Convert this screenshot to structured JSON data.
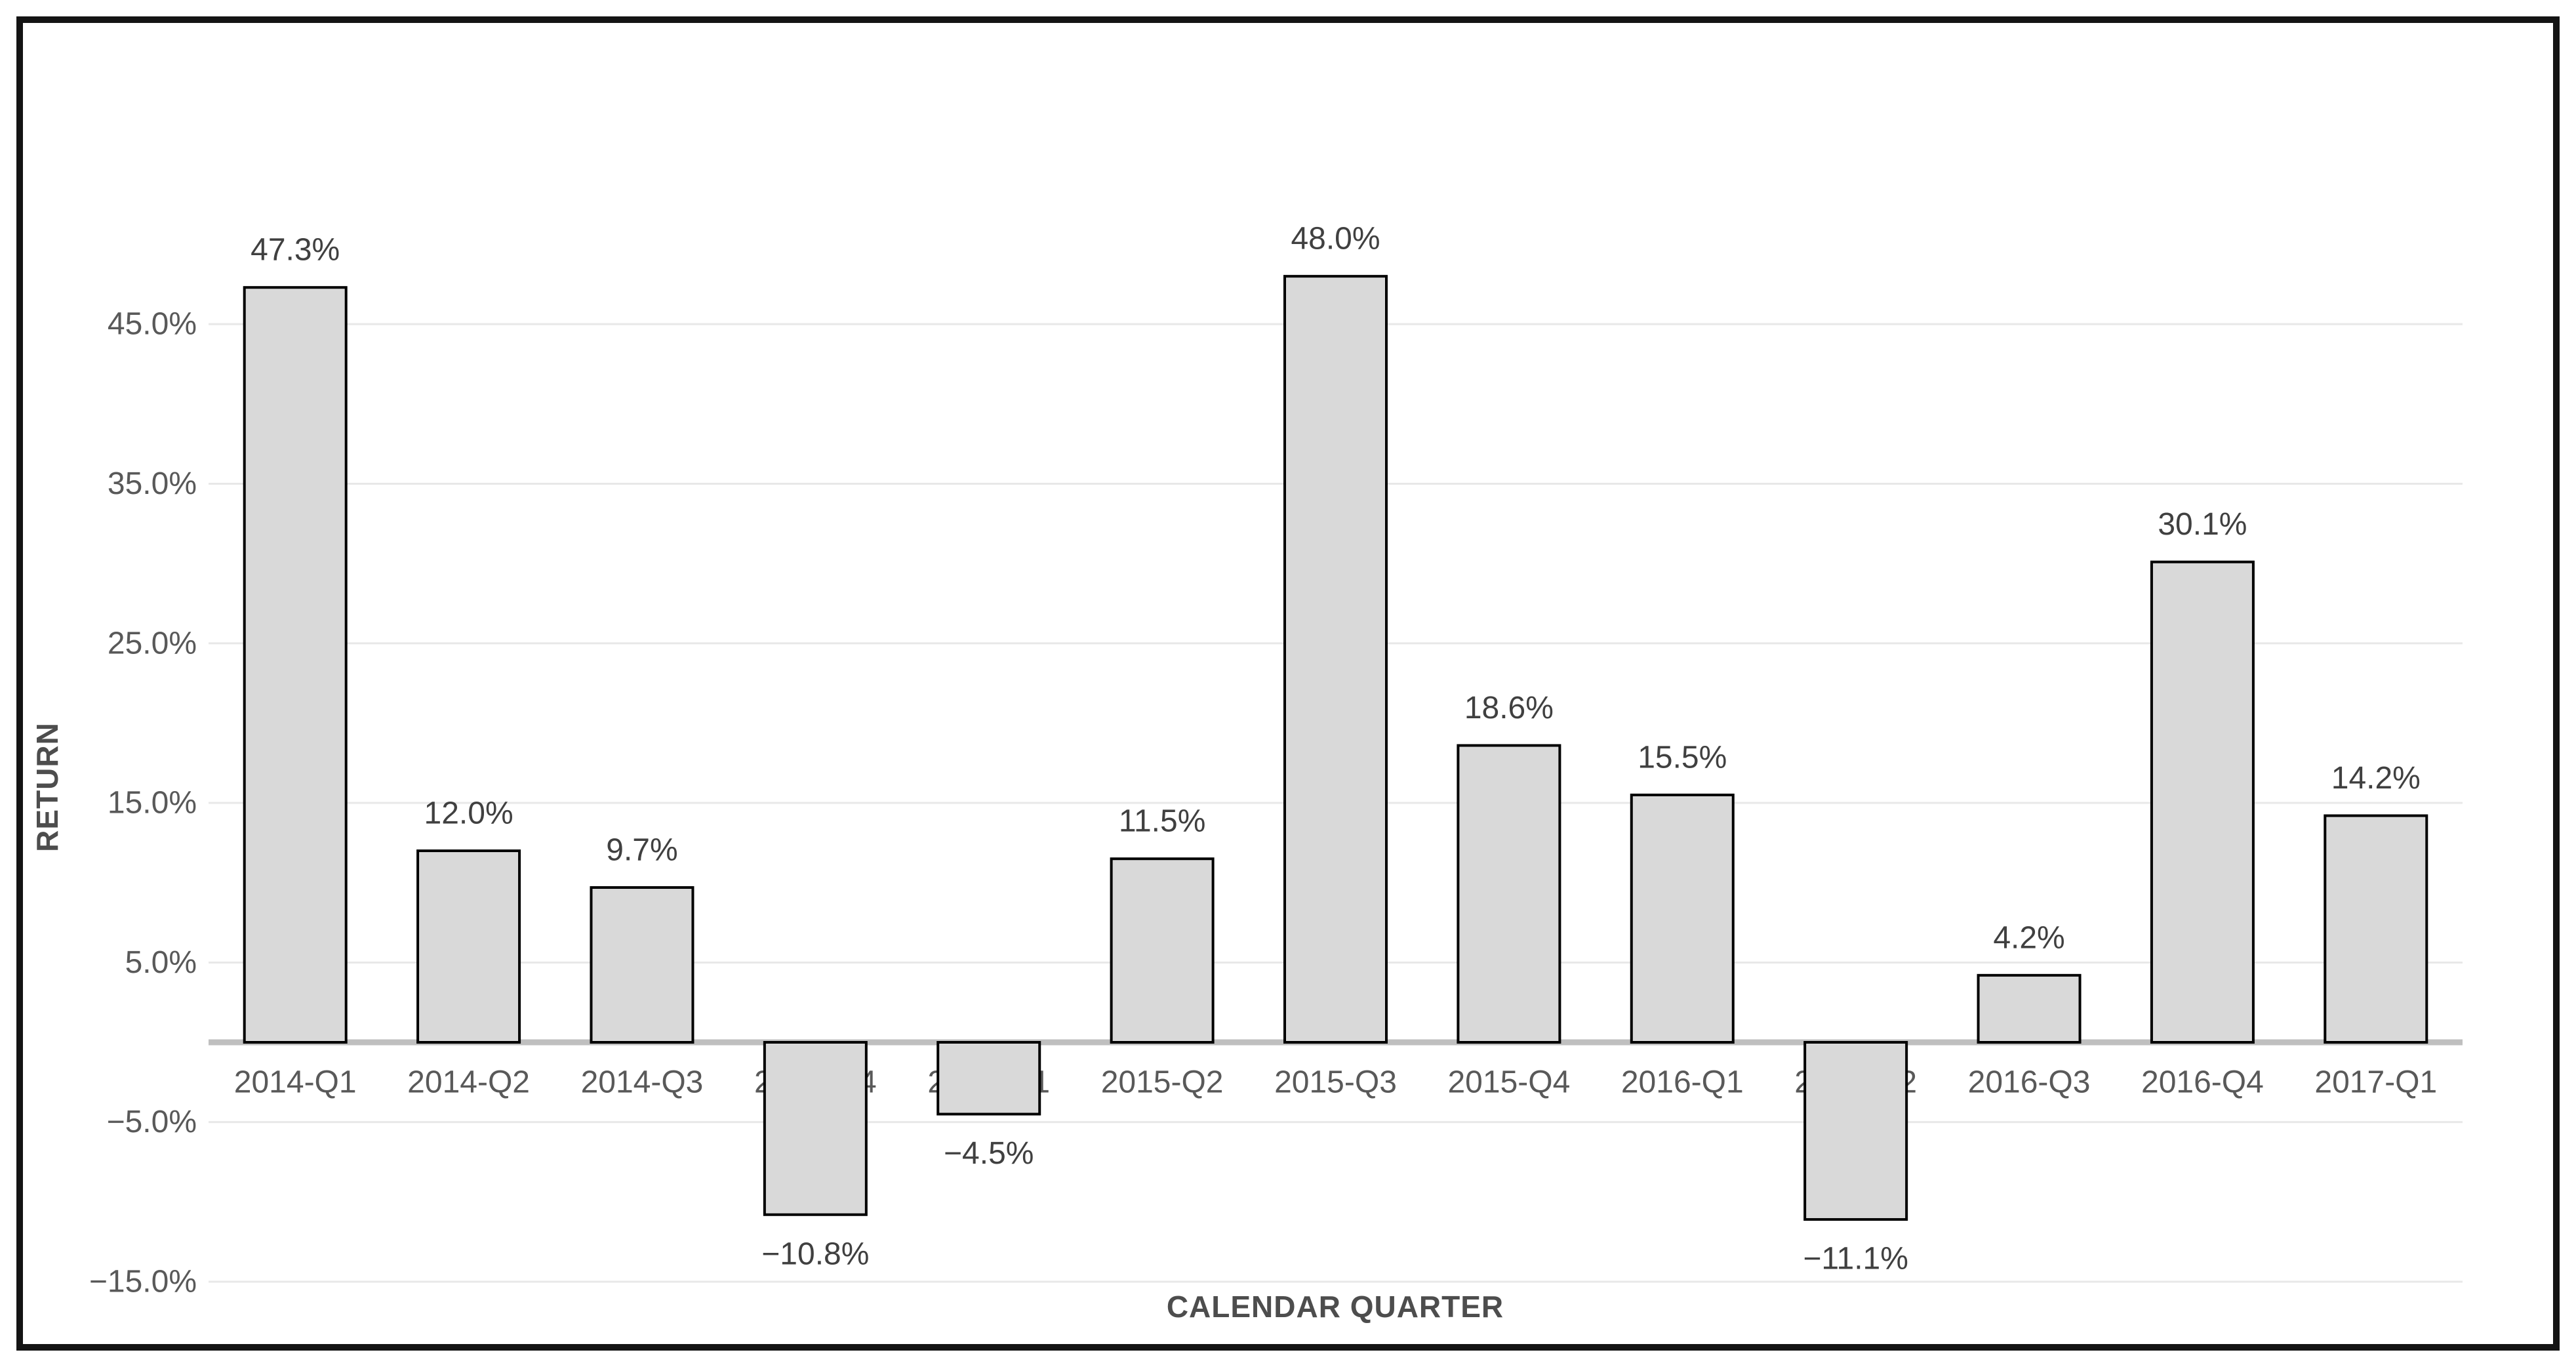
{
  "chart_data": {
    "type": "bar",
    "title": "",
    "categories": [
      "2014-Q1",
      "2014-Q2",
      "2014-Q3",
      "2014-Q4",
      "2015-Q1",
      "2015-Q2",
      "2015-Q3",
      "2015-Q4",
      "2016-Q1",
      "2016-Q2",
      "2016-Q3",
      "2016-Q4",
      "2017-Q1"
    ],
    "values": [
      47.3,
      12.0,
      9.7,
      -10.8,
      -4.5,
      11.5,
      48.0,
      18.6,
      15.5,
      -11.1,
      4.2,
      30.1,
      14.2
    ],
    "value_labels": [
      "47.3%",
      "12.0%",
      "9.7%",
      "−10.8%",
      "−4.5%",
      "11.5%",
      "48.0%",
      "18.6%",
      "15.5%",
      "−11.1%",
      "4.2%",
      "30.1%",
      "14.2%"
    ],
    "xlabel": "CALENDAR QUARTER",
    "ylabel": "RETURN",
    "ylim": [
      -15,
      50
    ],
    "yticks": [
      {
        "value": 45,
        "label": "45.0%"
      },
      {
        "value": 35,
        "label": "35.0%"
      },
      {
        "value": 25,
        "label": "25.0%"
      },
      {
        "value": 15,
        "label": "15.0%"
      },
      {
        "value": 5,
        "label": "5.0%"
      },
      {
        "value": -5,
        "label": "−5.0%"
      },
      {
        "value": -15,
        "label": "−15.0%"
      }
    ],
    "grid": "horizontal",
    "legend": "none",
    "colors": {
      "bar_fill": "#d9d9d9",
      "bar_border": "#000000",
      "gridline": "#e8e8e8",
      "zero_line": "#bfbfbf",
      "tick_label": "#595959",
      "data_label": "#404040",
      "axis_title": "#4d4d4d",
      "frame_border": "#141414",
      "background": "#ffffff"
    }
  }
}
